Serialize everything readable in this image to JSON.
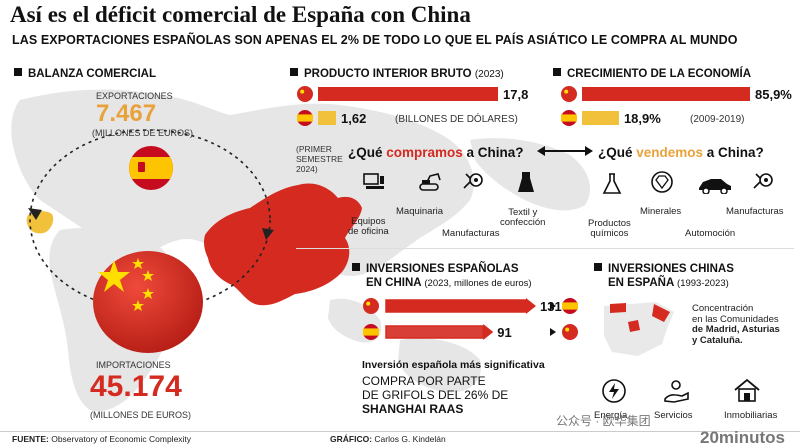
{
  "header": {
    "title": "Así es el déficit comercial de España con China",
    "subtitle": "LAS EXPORTACIONES ESPAÑOLAS SON APENAS EL 2% DE TODO LO QUE EL PAÍS ASIÁTICO LE COMPRA AL MUNDO"
  },
  "balanza": {
    "heading": "BALANZA COMERCIAL",
    "export_label": "EXPORTACIONES",
    "export_value": "7.467",
    "export_unit": "(MILLONES DE EUROS)",
    "import_label": "IMPORTACIONES",
    "import_value": "45.174",
    "import_unit": "(MILLONES DE EUROS)"
  },
  "pib": {
    "heading": "PRODUCTO INTERIOR BRUTO",
    "year": "(2023)",
    "note": "(BILLONES DE DÓLARES)"
  },
  "crecimiento": {
    "heading": "CRECIMIENTO DE LA ECONOMÍA",
    "period": "(2009-2019)"
  },
  "comercio": {
    "period_note": [
      "(PRIMER",
      "SEMESTRE",
      "2024)"
    ],
    "q_compramos": [
      "¿Qué ",
      "compramos",
      " a China?"
    ],
    "q_vendemos": [
      "¿Qué ",
      "vendemos",
      " a China?"
    ],
    "compramos_items": [
      {
        "label": "Equipos de oficina",
        "lines": [
          "Equipos",
          "de oficina"
        ]
      },
      {
        "label": "Maquinaria",
        "lines": [
          "Maquinaria"
        ]
      },
      {
        "label": "Manufacturas",
        "lines": [
          "Manufacturas"
        ]
      },
      {
        "label": "Textil y confección",
        "lines": [
          "Textil y",
          "confección"
        ]
      }
    ],
    "vendemos_items": [
      {
        "label": "Productos químicos",
        "lines": [
          "Productos",
          "químicos"
        ]
      },
      {
        "label": "Minerales",
        "lines": [
          "Minerales"
        ]
      },
      {
        "label": "Automoción",
        "lines": [
          "Automoción"
        ]
      },
      {
        "label": "Manufacturas",
        "lines": [
          "Manufacturas"
        ]
      }
    ]
  },
  "inv_es": {
    "heading_1": "INVERSIONES ESPAÑOLAS",
    "heading_2": "EN CHINA",
    "heading_note": "(2023, millones de euros)",
    "highlight_title": "Inversión española más significativa",
    "highlight_lines": [
      "COMPRA POR PARTE",
      "DE GRIFOLS DEL 26% DE",
      "SHANGHAI RAAS"
    ]
  },
  "inv_cn": {
    "heading_1": "INVERSIONES CHINAS",
    "heading_2": "EN ESPAÑA",
    "heading_note": "(1993-2023)",
    "note_lines": [
      "Concentración",
      "en las Comunidades",
      "de Madrid, Asturias",
      "y Cataluña."
    ],
    "sectors": [
      "Energía",
      "Servicios",
      "Inmobiliarias"
    ]
  },
  "footer": {
    "source_label": "FUENTE:",
    "source": "Observatory of Economic Complexity",
    "graphic_label": "GRÁFICO:",
    "graphic": "Carlos G. Kindelán",
    "brand": "20minutos",
    "watermark": "公众号 · 欧华集团"
  },
  "colors": {
    "red": "#d42a20",
    "yellow": "#f2c13c",
    "orange": "#e9a23b"
  },
  "chart_data": [
    {
      "type": "bar",
      "categories": [
        "China",
        "España"
      ],
      "values": [
        17.8,
        1.62
      ],
      "value_labels": [
        "17,8",
        "1,62"
      ],
      "title": "PRODUCTO INTERIOR BRUTO (2023)",
      "unit": "(BILLONES DE DÓLARES)"
    },
    {
      "type": "bar",
      "categories": [
        "China",
        "España"
      ],
      "values": [
        85.9,
        18.9
      ],
      "value_labels": [
        "85,9%",
        "18,9%"
      ],
      "title": "CRECIMIENTO DE LA ECONOMÍA (2009-2019)"
    },
    {
      "type": "bar",
      "categories": [
        "Inversiones españolas en China",
        "Inversiones chinas en España"
      ],
      "values": [
        131,
        91
      ],
      "value_labels": [
        "131",
        "91"
      ],
      "title": "INVERSIONES (2023, millones de euros)"
    }
  ]
}
